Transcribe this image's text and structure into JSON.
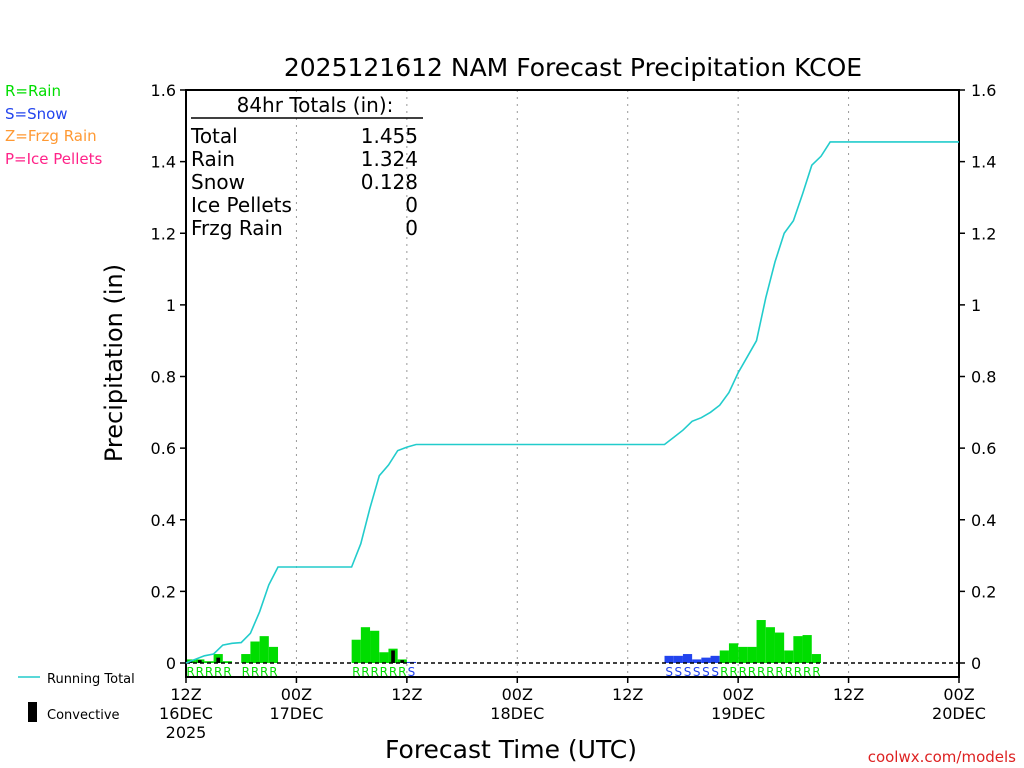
{
  "page": {
    "watermark": "coolwx.com/models"
  },
  "legend": {
    "rain": "R=Rain",
    "snow": "S=Snow",
    "frzg": "Z=Frzg Rain",
    "ice": "P=Ice Pellets",
    "running_total": "Running Total",
    "convective": "Convective"
  },
  "totals_box": {
    "title": "84hr Totals (in):",
    "rows": [
      {
        "label": "Total",
        "value": "1.455"
      },
      {
        "label": "Rain",
        "value": "1.324"
      },
      {
        "label": "Snow",
        "value": "0.128"
      },
      {
        "label": "Ice Pellets",
        "value": "0"
      },
      {
        "label": "Frzg Rain",
        "value": "0"
      }
    ]
  },
  "colors": {
    "rain": "#00dd00",
    "snow": "#2244ee",
    "frzg": "#ff9933",
    "ice": "#ff2288",
    "running_total": "#22cccc",
    "convective": "#000000",
    "watermark": "#dd2222"
  },
  "chart_data": {
    "type": "bar",
    "title": "2025121612 NAM Forecast Precipitation KCOE",
    "xlabel": "Forecast Time (UTC)",
    "ylabel": "Precipitation (in)",
    "ylim": [
      0,
      1.6
    ],
    "yticks": [
      "0",
      "0.2",
      "0.4",
      "0.6",
      "0.8",
      "1",
      "1.2",
      "1.4",
      "1.6"
    ],
    "xlim_hours": [
      0,
      84
    ],
    "xticks": [
      {
        "h": 0,
        "lines": [
          "12Z",
          "16DEC",
          "2025"
        ]
      },
      {
        "h": 12,
        "lines": [
          "00Z",
          "17DEC"
        ]
      },
      {
        "h": 24,
        "lines": [
          "12Z"
        ]
      },
      {
        "h": 36,
        "lines": [
          "00Z",
          "18DEC"
        ]
      },
      {
        "h": 48,
        "lines": [
          "12Z"
        ]
      },
      {
        "h": 60,
        "lines": [
          "00Z",
          "19DEC"
        ]
      },
      {
        "h": 72,
        "lines": [
          "12Z"
        ]
      },
      {
        "h": 84,
        "lines": [
          "00Z",
          "20DEC"
        ]
      }
    ],
    "precip_bars": [
      {
        "h": 1,
        "v": 0.01,
        "p": "R",
        "c": 0.005
      },
      {
        "h": 2,
        "v": 0.01,
        "p": "R",
        "c": 0.008
      },
      {
        "h": 3,
        "v": 0.005,
        "p": "R",
        "c": 0
      },
      {
        "h": 4,
        "v": 0.025,
        "p": "R",
        "c": 0.015
      },
      {
        "h": 5,
        "v": 0.005,
        "p": "R",
        "c": 0
      },
      {
        "h": 7,
        "v": 0.025,
        "p": "R",
        "c": 0
      },
      {
        "h": 8,
        "v": 0.06,
        "p": "R",
        "c": 0
      },
      {
        "h": 9,
        "v": 0.075,
        "p": "R",
        "c": 0
      },
      {
        "h": 10,
        "v": 0.045,
        "p": "R",
        "c": 0
      },
      {
        "h": 19,
        "v": 0.065,
        "p": "R",
        "c": 0
      },
      {
        "h": 20,
        "v": 0.1,
        "p": "R",
        "c": 0
      },
      {
        "h": 21,
        "v": 0.09,
        "p": "R",
        "c": 0
      },
      {
        "h": 22,
        "v": 0.03,
        "p": "R",
        "c": 0
      },
      {
        "h": 23,
        "v": 0.04,
        "p": "R",
        "c": 0.035
      },
      {
        "h": 24,
        "v": 0.01,
        "p": "R",
        "c": 0.008
      },
      {
        "h": 25,
        "v": 0.003,
        "p": "S",
        "c": 0
      },
      {
        "h": 53,
        "v": 0.02,
        "p": "S",
        "c": 0
      },
      {
        "h": 54,
        "v": 0.02,
        "p": "S",
        "c": 0
      },
      {
        "h": 55,
        "v": 0.025,
        "p": "S",
        "c": 0
      },
      {
        "h": 56,
        "v": 0.01,
        "p": "S",
        "c": 0
      },
      {
        "h": 57,
        "v": 0.015,
        "p": "S",
        "c": 0
      },
      {
        "h": 58,
        "v": 0.02,
        "p": "S",
        "c": 0
      },
      {
        "h": 59,
        "v": 0.035,
        "p": "R",
        "c": 0
      },
      {
        "h": 60,
        "v": 0.055,
        "p": "R",
        "c": 0
      },
      {
        "h": 61,
        "v": 0.045,
        "p": "R",
        "c": 0
      },
      {
        "h": 62,
        "v": 0.045,
        "p": "R",
        "c": 0
      },
      {
        "h": 63,
        "v": 0.12,
        "p": "R",
        "c": 0
      },
      {
        "h": 64,
        "v": 0.1,
        "p": "R",
        "c": 0
      },
      {
        "h": 65,
        "v": 0.085,
        "p": "R",
        "c": 0
      },
      {
        "h": 66,
        "v": 0.035,
        "p": "R",
        "c": 0
      },
      {
        "h": 67,
        "v": 0.075,
        "p": "R",
        "c": 0
      },
      {
        "h": 68,
        "v": 0.078,
        "p": "R",
        "c": 0
      },
      {
        "h": 69,
        "v": 0.025,
        "p": "R",
        "c": 0
      }
    ],
    "running_total": {
      "hours": [
        0,
        1,
        2,
        3,
        4,
        5,
        6,
        7,
        8,
        9,
        10,
        11,
        12,
        18,
        19,
        20,
        21,
        22,
        23,
        24,
        25,
        26,
        52,
        53,
        54,
        55,
        56,
        57,
        58,
        59,
        60,
        61,
        62,
        63,
        64,
        65,
        66,
        67,
        68,
        69,
        70,
        84
      ],
      "values": [
        0,
        0.01,
        0.02,
        0.025,
        0.05,
        0.055,
        0.057,
        0.083,
        0.143,
        0.218,
        0.268,
        0.268,
        0.268,
        0.268,
        0.333,
        0.433,
        0.523,
        0.553,
        0.593,
        0.603,
        0.61,
        0.61,
        0.61,
        0.63,
        0.65,
        0.675,
        0.685,
        0.7,
        0.72,
        0.755,
        0.81,
        0.855,
        0.9,
        1.02,
        1.12,
        1.2,
        1.235,
        1.31,
        1.39,
        1.415,
        1.455,
        1.455
      ]
    }
  }
}
